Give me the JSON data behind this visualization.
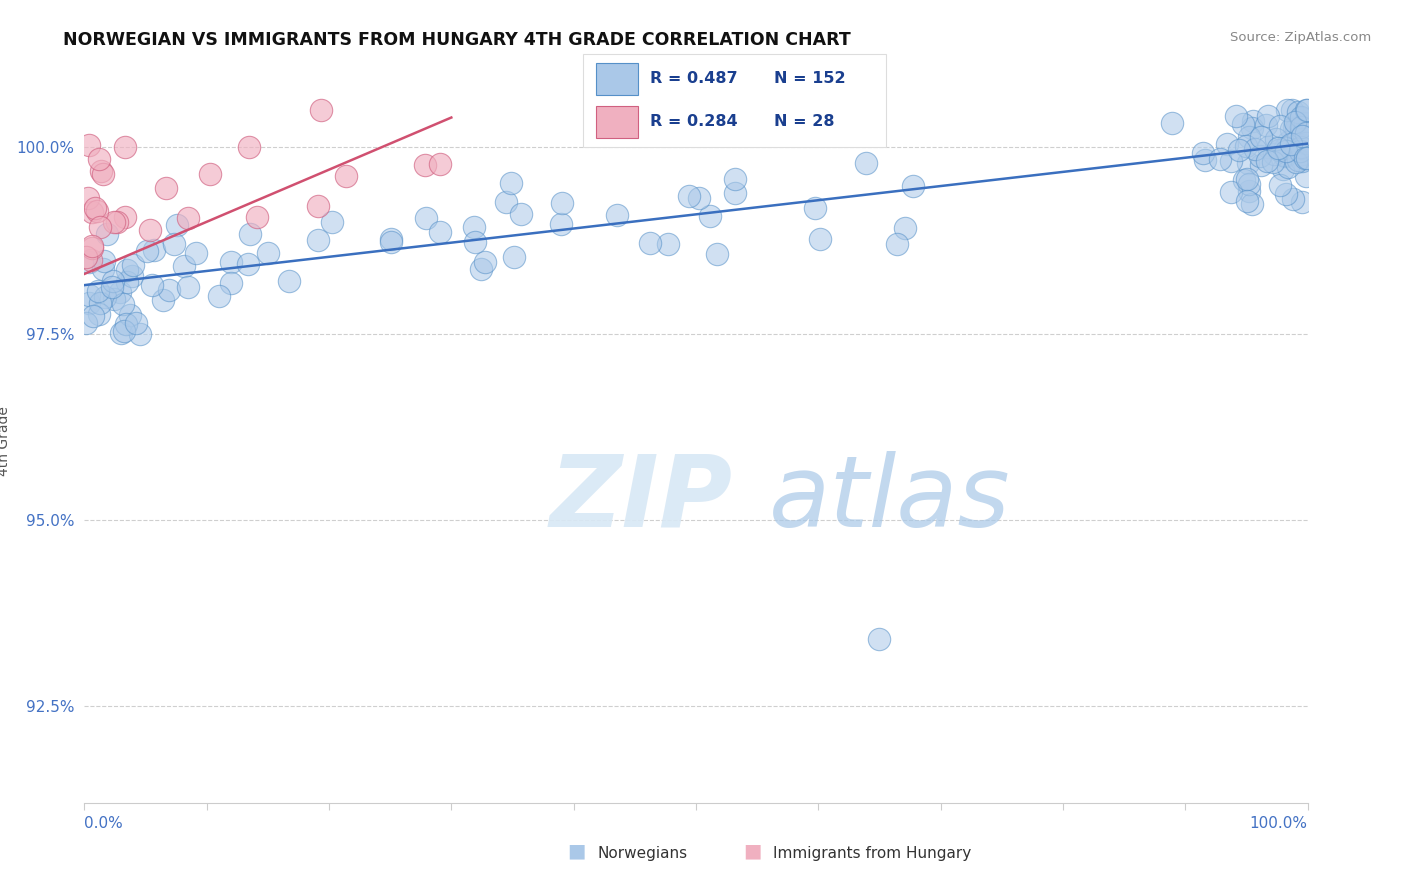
{
  "title": "NORWEGIAN VS IMMIGRANTS FROM HUNGARY 4TH GRADE CORRELATION CHART",
  "source": "Source: ZipAtlas.com",
  "ylabel": "4th Grade",
  "legend_blue_label": "Norwegians",
  "legend_pink_label": "Immigrants from Hungary",
  "yticks": [
    92.5,
    95.0,
    97.5,
    100.0
  ],
  "ytick_labels": [
    "92.5%",
    "95.0%",
    "97.5%",
    "100.0%"
  ],
  "ymin": 91.2,
  "ymax": 100.9,
  "xmin": 0.0,
  "xmax": 100.0,
  "blue_color": "#aac8e8",
  "blue_edge_color": "#5590c8",
  "pink_color": "#f0b0c0",
  "pink_edge_color": "#d06080",
  "blue_line_color": "#3a6fbf",
  "pink_line_color": "#d05070",
  "watermark_zip": "ZIP",
  "watermark_atlas": "atlas",
  "blue_r": "R = 0.487",
  "blue_n": "N = 152",
  "pink_r": "R = 0.284",
  "pink_n": "N = 28",
  "blue_line_x0": 0.0,
  "blue_line_y0": 98.15,
  "blue_line_x1": 100.0,
  "blue_line_y1": 100.05,
  "pink_line_x0": 0.0,
  "pink_line_y0": 98.3,
  "pink_line_x1": 30.0,
  "pink_line_y1": 100.4,
  "tick_color": "#4472c4",
  "axis_label_color": "#555555",
  "source_color": "#888888"
}
